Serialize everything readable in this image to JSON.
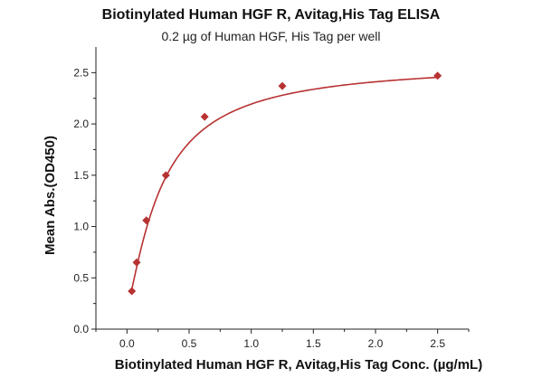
{
  "chart_data": {
    "type": "scatter",
    "title": "Biotinylated Human HGF R, Avitag,His Tag ELISA",
    "subtitle": "0.2 µg of Human HGF, His Tag per well",
    "xlabel": "Biotinylated Human HGF R, Avitag,His Tag Conc. (µg/mL)",
    "ylabel": "Mean Abs.(OD450)",
    "xlim": [
      -0.25,
      2.75
    ],
    "ylim": [
      0.0,
      2.75
    ],
    "xticks": [
      "0.0",
      "0.5",
      "1.0",
      "1.5",
      "2.0",
      "2.5"
    ],
    "yticks": [
      "0.0",
      "0.5",
      "1.0",
      "1.5",
      "2.0",
      "2.5"
    ],
    "grid": false,
    "colors": {
      "series": "#b83232"
    },
    "series": [
      {
        "x": [
          0.039,
          0.078,
          0.156,
          0.313,
          0.625,
          1.25,
          2.5
        ],
        "y": [
          0.37,
          0.65,
          1.06,
          1.5,
          2.07,
          2.37,
          2.47
        ],
        "fit": "4PL"
      }
    ]
  }
}
